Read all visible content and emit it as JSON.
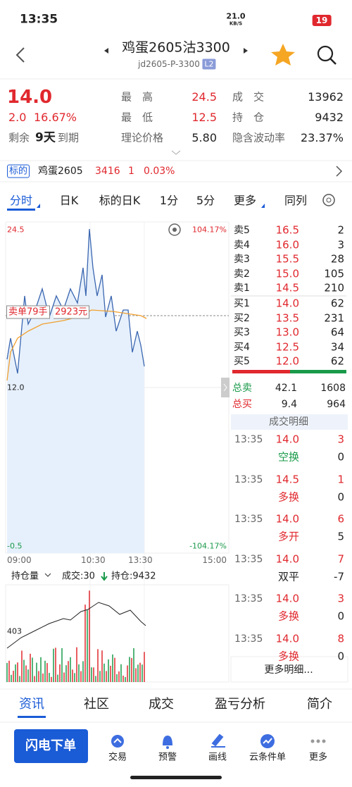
{
  "status": {
    "time": "13:35",
    "net": "21.0",
    "netunit": "KB/S",
    "battery": "19"
  },
  "header": {
    "title": "鸡蛋2605沽3300",
    "code": "jd2605-P-3300",
    "badge": "L2"
  },
  "quote": {
    "price": "14.0",
    "change": "2.0",
    "pct": "16.67%",
    "remain_label": "剩余",
    "remain_days": "9天",
    "remain_suffix": "到期",
    "stats": [
      [
        "最　高",
        "24.5"
      ],
      [
        "成　交",
        "13962"
      ],
      [
        "最　低",
        "12.5"
      ],
      [
        "持　仓",
        "9432"
      ],
      [
        "理论价格",
        "5.80"
      ],
      [
        "隐含波动率",
        "23.37%"
      ]
    ]
  },
  "underlying": {
    "tag": "标的",
    "name": "鸡蛋2605",
    "price": "3416",
    "chg": "1",
    "pct": "0.03%"
  },
  "tabs": [
    "分时",
    "日K",
    "标的日K",
    "1分",
    "5分",
    "更多",
    "同列"
  ],
  "chart": {
    "top_left": "24.5",
    "top_right": "104.17%",
    "mid": "12.0",
    "bot_left": "-0.5",
    "bot_right": "-104.17%",
    "times": [
      "09:00",
      "10:30",
      "13:30",
      "15:00"
    ],
    "annotation": "卖单79手",
    "annotation_value": "2923元"
  },
  "volume": {
    "selector": "持仓量",
    "info": "成交:30",
    "info2": "持仓:9432",
    "left": "403"
  },
  "orderbook": {
    "asks": [
      [
        "卖5",
        "16.5",
        "2"
      ],
      [
        "卖4",
        "16.0",
        "3"
      ],
      [
        "卖3",
        "15.5",
        "28"
      ],
      [
        "卖2",
        "15.0",
        "105"
      ],
      [
        "卖1",
        "14.5",
        "210"
      ]
    ],
    "bids": [
      [
        "买1",
        "14.0",
        "62"
      ],
      [
        "买2",
        "13.5",
        "231"
      ],
      [
        "买3",
        "13.0",
        "64"
      ],
      [
        "买4",
        "12.5",
        "34"
      ],
      [
        "买5",
        "12.0",
        "62"
      ]
    ],
    "totals": [
      [
        "总卖",
        "42.1",
        "1608"
      ],
      [
        "总买",
        "9.4",
        "964"
      ]
    ]
  },
  "trades": {
    "header": "成交明细",
    "rows": [
      {
        "time": "13:35",
        "price": "14.0",
        "vol": "3",
        "type": "空换",
        "oi": "0"
      },
      {
        "time": "13:35",
        "price": "14.5",
        "vol": "1",
        "type": "多换",
        "oi": "0"
      },
      {
        "time": "13:35",
        "price": "14.0",
        "vol": "6",
        "type": "多开",
        "oi": "5"
      },
      {
        "time": "13:35",
        "price": "14.0",
        "vol": "7",
        "type": "双平",
        "oi": "-7"
      },
      {
        "time": "13:35",
        "price": "14.0",
        "vol": "3",
        "type": "多换",
        "oi": "0"
      },
      {
        "time": "13:35",
        "price": "14.0",
        "vol": "8",
        "type": "多换",
        "oi": "0"
      }
    ],
    "more": "更多明细..."
  },
  "bottom_tabs": [
    "资讯",
    "社区",
    "成交",
    "盈亏分析",
    "简介"
  ],
  "toolbar": {
    "button": "闪电下单",
    "items": [
      "交易",
      "预警",
      "画线",
      "云条件单",
      "更多"
    ]
  }
}
